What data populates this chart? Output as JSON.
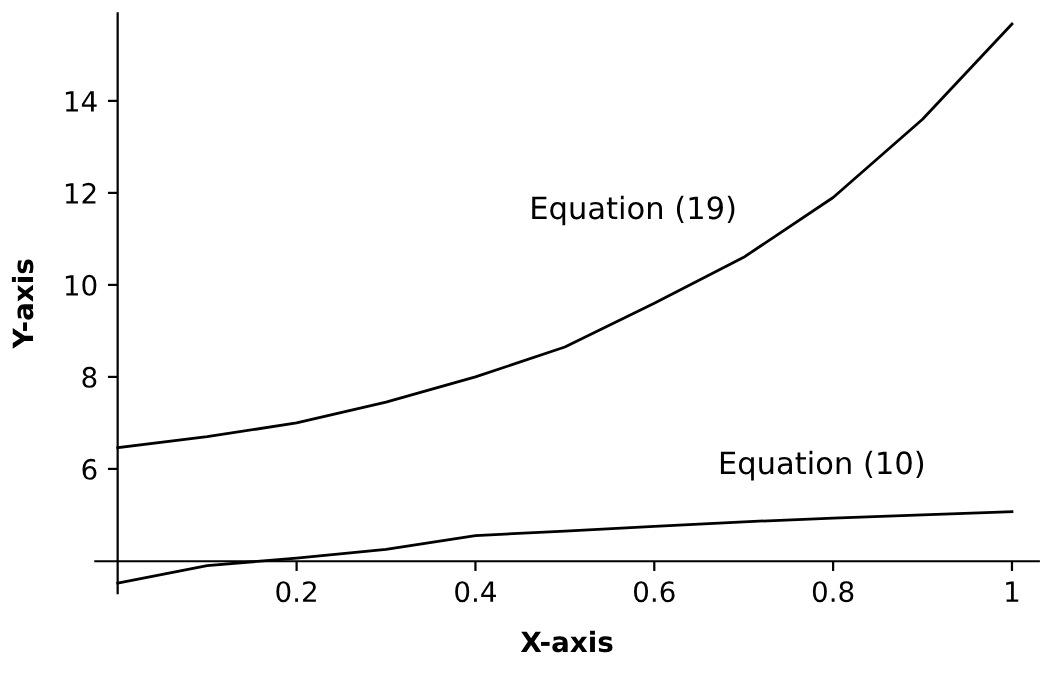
{
  "chart_data": {
    "type": "line",
    "xlabel": "X-axis",
    "ylabel": "Y-axis",
    "xlim": [
      -0.025,
      1.03
    ],
    "ylim": [
      3.3,
      15.9
    ],
    "xticks": [
      0.2,
      0.4,
      0.6,
      0.8,
      {
        "value": 1,
        "label": "1"
      }
    ],
    "yticks": [
      6,
      8,
      10,
      12,
      14
    ],
    "grid": false,
    "legend": false,
    "marker": "none",
    "line_style": "solid",
    "series": [
      {
        "color": "#000000",
        "x": [
          0,
          0.1,
          0.2,
          0.3,
          0.4,
          0.5,
          0.6,
          0.7,
          0.8,
          0.9,
          1
        ],
        "values": [
          6.46,
          6.7,
          7.0,
          7.45,
          8.0,
          8.65,
          9.6,
          10.6,
          11.9,
          13.6,
          15.67
        ]
      },
      {
        "color": "#000000",
        "x": [
          0,
          0.1,
          0.2,
          0.3,
          0.4,
          0.5,
          0.6,
          0.7,
          0.8,
          0.9,
          1
        ],
        "values": [
          3.52,
          3.9,
          4.06,
          4.25,
          4.55,
          4.65,
          4.75,
          4.85,
          4.93,
          5.0,
          5.07
        ]
      }
    ],
    "annotations": [
      "Equation (19)",
      "Equation (10)"
    ]
  }
}
